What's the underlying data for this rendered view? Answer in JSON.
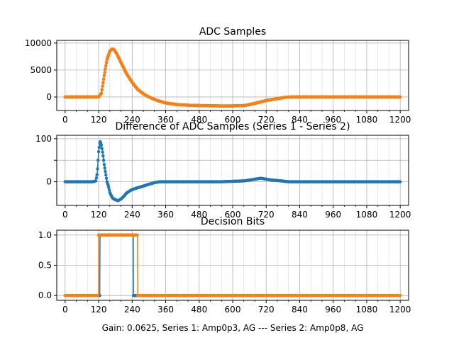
{
  "figure": {
    "caption": "Gain: 0.0625, Series 1: Amp0p3, AG --- Series 2: Amp0p8, AG"
  },
  "colors": {
    "series1": "#1f77b4",
    "series2": "#ff7f0e",
    "grid": "#b0b0b0",
    "axis": "#000000"
  },
  "chart_data": [
    {
      "type": "scatter",
      "title": "ADC Samples",
      "xlim": [
        -30,
        1230
      ],
      "ylim": [
        -2500,
        10500
      ],
      "xticks": [
        0,
        120,
        240,
        360,
        480,
        600,
        720,
        840,
        960,
        1080,
        1200
      ],
      "xtick_labels": [
        "0",
        "120",
        "240",
        "360",
        "480",
        "600",
        "720",
        "840",
        "960",
        "1080",
        "1200"
      ],
      "yticks": [
        0,
        5000,
        10000
      ],
      "ytick_labels": [
        "0",
        "5000",
        "10000"
      ],
      "minor_xtick_step": 40,
      "grid": true,
      "marker": "dot-line",
      "series": [
        {
          "name": "Series 1",
          "color": "#1f77b4",
          "points": [
            [
              0,
              0
            ],
            [
              110,
              0
            ],
            [
              120,
              40
            ],
            [
              130,
              700
            ],
            [
              140,
              4000
            ],
            [
              150,
              7000
            ],
            [
              160,
              8500
            ],
            [
              168,
              8900
            ],
            [
              175,
              8800
            ],
            [
              185,
              8000
            ],
            [
              200,
              6400
            ],
            [
              220,
              4300
            ],
            [
              240,
              2700
            ],
            [
              260,
              1400
            ],
            [
              280,
              600
            ],
            [
              300,
              0
            ],
            [
              330,
              -650
            ],
            [
              360,
              -1100
            ],
            [
              400,
              -1400
            ],
            [
              450,
              -1550
            ],
            [
              500,
              -1620
            ],
            [
              550,
              -1650
            ],
            [
              600,
              -1650
            ],
            [
              640,
              -1600
            ],
            [
              660,
              -1400
            ],
            [
              690,
              -1050
            ],
            [
              720,
              -650
            ],
            [
              760,
              -300
            ],
            [
              790,
              -50
            ],
            [
              810,
              0
            ],
            [
              1200,
              0
            ]
          ]
        },
        {
          "name": "Series 2",
          "color": "#ff7f0e",
          "points": [
            [
              0,
              0
            ],
            [
              110,
              0
            ],
            [
              120,
              0
            ],
            [
              130,
              650
            ],
            [
              140,
              3950
            ],
            [
              150,
              6950
            ],
            [
              160,
              8470
            ],
            [
              168,
              8880
            ],
            [
              175,
              8810
            ],
            [
              185,
              8040
            ],
            [
              200,
              6450
            ],
            [
              220,
              4340
            ],
            [
              240,
              2740
            ],
            [
              260,
              1410
            ],
            [
              280,
              610
            ],
            [
              300,
              0
            ],
            [
              330,
              -650
            ],
            [
              360,
              -1100
            ],
            [
              400,
              -1400
            ],
            [
              450,
              -1550
            ],
            [
              500,
              -1620
            ],
            [
              550,
              -1650
            ],
            [
              600,
              -1650
            ],
            [
              640,
              -1600
            ],
            [
              660,
              -1400
            ],
            [
              690,
              -1050
            ],
            [
              720,
              -660
            ],
            [
              760,
              -305
            ],
            [
              790,
              -50
            ],
            [
              810,
              0
            ],
            [
              1200,
              0
            ]
          ]
        }
      ]
    },
    {
      "type": "scatter",
      "title": "Difference of ADC Samples (Series 1 - Series 2)",
      "xlim": [
        -30,
        1230
      ],
      "ylim": [
        -55,
        108
      ],
      "xticks": [
        0,
        120,
        240,
        360,
        480,
        600,
        720,
        840,
        960,
        1080,
        1200
      ],
      "xtick_labels": [
        "0",
        "120",
        "240",
        "360",
        "480",
        "600",
        "720",
        "840",
        "960",
        "1080",
        "1200"
      ],
      "yticks": [
        0,
        50,
        100
      ],
      "ytick_labels": [
        "0",
        "",
        "100"
      ],
      "minor_xtick_step": 40,
      "grid": true,
      "marker": "dot-line",
      "series": [
        {
          "name": "Series 1 - Series 2",
          "color": "#1f77b4",
          "points": [
            [
              0,
              0
            ],
            [
              100,
              0
            ],
            [
              110,
              2
            ],
            [
              115,
              20
            ],
            [
              120,
              70
            ],
            [
              125,
              95
            ],
            [
              130,
              85
            ],
            [
              135,
              65
            ],
            [
              140,
              40
            ],
            [
              145,
              20
            ],
            [
              150,
              0
            ],
            [
              155,
              -10
            ],
            [
              160,
              -25
            ],
            [
              170,
              -38
            ],
            [
              180,
              -42
            ],
            [
              190,
              -44
            ],
            [
              200,
              -40
            ],
            [
              210,
              -34
            ],
            [
              220,
              -26
            ],
            [
              240,
              -18
            ],
            [
              260,
              -14
            ],
            [
              280,
              -10
            ],
            [
              300,
              -6
            ],
            [
              320,
              -2
            ],
            [
              340,
              0
            ],
            [
              400,
              0
            ],
            [
              500,
              0
            ],
            [
              560,
              0
            ],
            [
              600,
              1
            ],
            [
              640,
              2
            ],
            [
              660,
              4
            ],
            [
              680,
              6
            ],
            [
              700,
              8
            ],
            [
              720,
              6
            ],
            [
              740,
              4
            ],
            [
              760,
              3
            ],
            [
              800,
              0
            ],
            [
              1200,
              0
            ]
          ]
        }
      ]
    },
    {
      "type": "scatter",
      "title": "Decision Bits",
      "xlim": [
        -30,
        1230
      ],
      "ylim": [
        -0.08,
        1.08
      ],
      "xticks": [
        0,
        120,
        240,
        360,
        480,
        600,
        720,
        840,
        960,
        1080,
        1200
      ],
      "xtick_labels": [
        "0",
        "120",
        "240",
        "360",
        "480",
        "600",
        "720",
        "840",
        "960",
        "1080",
        "1200"
      ],
      "yticks": [
        0,
        0.5,
        1
      ],
      "ytick_labels": [
        "0.0",
        "0.5",
        "1.0"
      ],
      "minor_xtick_step": 40,
      "grid": true,
      "marker": "dot-line",
      "series": [
        {
          "name": "Series 1",
          "color": "#1f77b4",
          "points": [
            [
              0,
              0
            ],
            [
              124,
              0
            ],
            [
              125,
              1
            ],
            [
              244,
              1
            ],
            [
              245,
              0
            ],
            [
              1200,
              0
            ]
          ]
        },
        {
          "name": "Series 2",
          "color": "#ff7f0e",
          "points": [
            [
              0,
              0
            ],
            [
              119,
              0
            ],
            [
              120,
              1
            ],
            [
              259,
              1
            ],
            [
              260,
              0
            ],
            [
              1200,
              0
            ]
          ]
        }
      ]
    }
  ]
}
